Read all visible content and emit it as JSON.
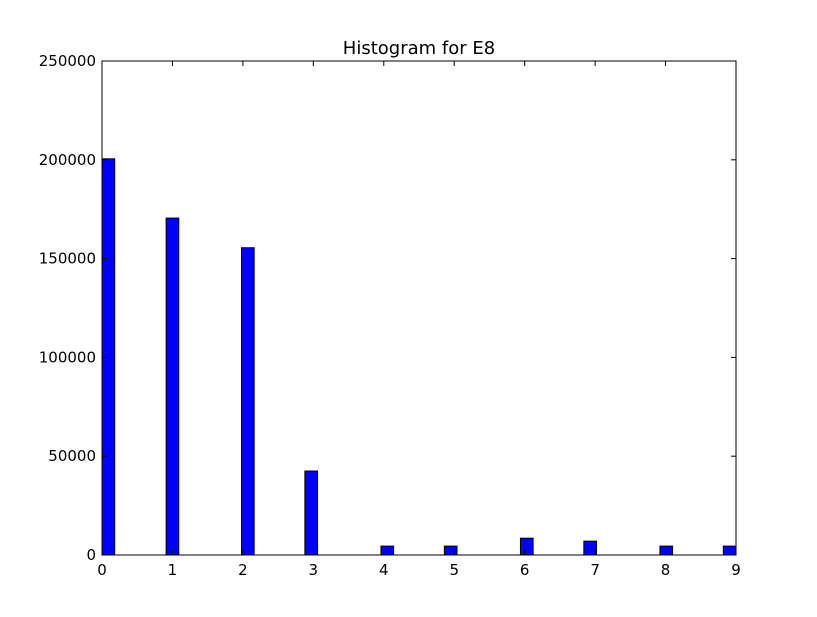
{
  "chart_data": {
    "type": "bar",
    "title": "Histogram for E8",
    "xlabel": "",
    "ylabel": "",
    "xlim": [
      0,
      9
    ],
    "ylim": [
      0,
      250000
    ],
    "x_ticks": [
      "0",
      "1",
      "2",
      "3",
      "4",
      "5",
      "6",
      "7",
      "8",
      "9"
    ],
    "y_ticks": [
      "0",
      "50000",
      "100000",
      "150000",
      "200000",
      "250000"
    ],
    "grid": false,
    "legend": "none",
    "bar_color": "#0000ff",
    "bar_width": 0.18,
    "bars": [
      {
        "x": 0.09,
        "value": 200500
      },
      {
        "x": 1.0,
        "value": 170500
      },
      {
        "x": 2.07,
        "value": 155500
      },
      {
        "x": 2.97,
        "value": 42500
      },
      {
        "x": 4.05,
        "value": 4500
      },
      {
        "x": 4.95,
        "value": 4500
      },
      {
        "x": 6.03,
        "value": 8500
      },
      {
        "x": 6.93,
        "value": 7000
      },
      {
        "x": 8.01,
        "value": 4500
      },
      {
        "x": 8.91,
        "value": 4500
      }
    ]
  }
}
